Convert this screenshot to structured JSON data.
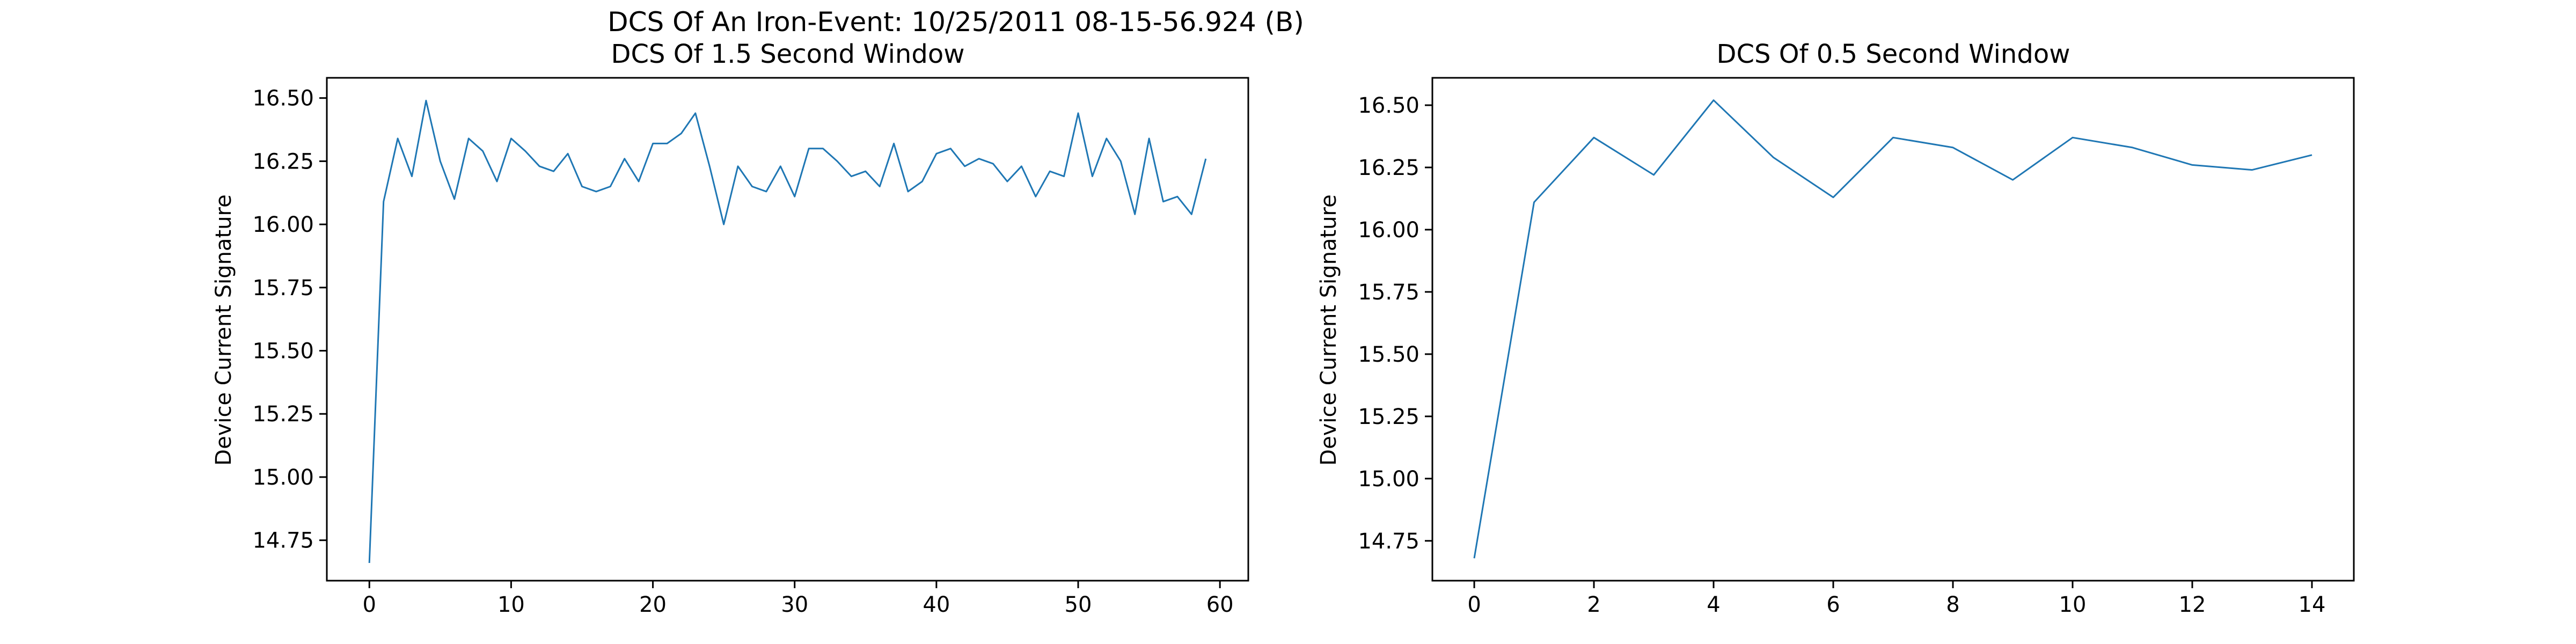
{
  "figure_title": "DCS Of An Iron-Event: 10/25/2011 08-15-56.924 (B)",
  "chart_data": [
    {
      "type": "line",
      "title": "DCS Of 1.5 Second Window",
      "xlabel": "",
      "ylabel": "Device Current Signature",
      "xlim": [
        -3,
        62
      ],
      "ylim": [
        14.59,
        16.58
      ],
      "xticks": [
        0,
        10,
        20,
        30,
        40,
        50,
        60
      ],
      "yticks": [
        14.75,
        15.0,
        15.25,
        15.5,
        15.75,
        16.0,
        16.25,
        16.5
      ],
      "ytick_labels": [
        "14.75",
        "15.00",
        "15.25",
        "15.50",
        "15.75",
        "16.00",
        "16.25",
        "16.50"
      ],
      "grid": false,
      "color": "#1f77b4",
      "x": [
        0,
        1,
        2,
        3,
        4,
        5,
        6,
        7,
        8,
        9,
        10,
        11,
        12,
        13,
        14,
        15,
        16,
        17,
        18,
        19,
        20,
        21,
        22,
        23,
        24,
        25,
        26,
        27,
        28,
        29,
        30,
        31,
        32,
        33,
        34,
        35,
        36,
        37,
        38,
        39,
        40,
        41,
        42,
        43,
        44,
        45,
        46,
        47,
        48,
        49,
        50,
        51,
        52,
        53,
        54,
        55,
        56,
        57,
        58,
        59
      ],
      "y": [
        14.66,
        16.09,
        16.34,
        16.19,
        16.49,
        16.25,
        16.1,
        16.34,
        16.29,
        16.17,
        16.34,
        16.29,
        16.23,
        16.21,
        16.28,
        16.15,
        16.13,
        16.15,
        16.26,
        16.17,
        16.32,
        16.32,
        16.36,
        16.44,
        16.23,
        16.0,
        16.23,
        16.15,
        16.13,
        16.23,
        16.11,
        16.3,
        16.3,
        16.25,
        16.19,
        16.21,
        16.15,
        16.32,
        16.13,
        16.17,
        16.28,
        16.3,
        16.23,
        16.26,
        16.24,
        16.17,
        16.23,
        16.11,
        16.21,
        16.19,
        16.44,
        16.19,
        16.34,
        16.25,
        16.04,
        16.34,
        16.09,
        16.11,
        16.04,
        16.26
      ]
    },
    {
      "type": "line",
      "title": "DCS Of 0.5 Second Window",
      "xlabel": "",
      "ylabel": "Device Current Signature",
      "xlim": [
        -0.7,
        14.7
      ],
      "ylim": [
        14.59,
        16.61
      ],
      "xticks": [
        0,
        2,
        4,
        6,
        8,
        10,
        12,
        14
      ],
      "yticks": [
        14.75,
        15.0,
        15.25,
        15.5,
        15.75,
        16.0,
        16.25,
        16.5
      ],
      "ytick_labels": [
        "14.75",
        "15.00",
        "15.25",
        "15.50",
        "15.75",
        "16.00",
        "16.25",
        "16.50"
      ],
      "grid": false,
      "color": "#1f77b4",
      "x": [
        0,
        1,
        2,
        3,
        4,
        5,
        6,
        7,
        8,
        9,
        10,
        11,
        12,
        13,
        14
      ],
      "y": [
        14.68,
        16.11,
        16.37,
        16.22,
        16.52,
        16.29,
        16.13,
        16.37,
        16.33,
        16.2,
        16.37,
        16.33,
        16.26,
        16.24,
        16.3
      ]
    }
  ]
}
